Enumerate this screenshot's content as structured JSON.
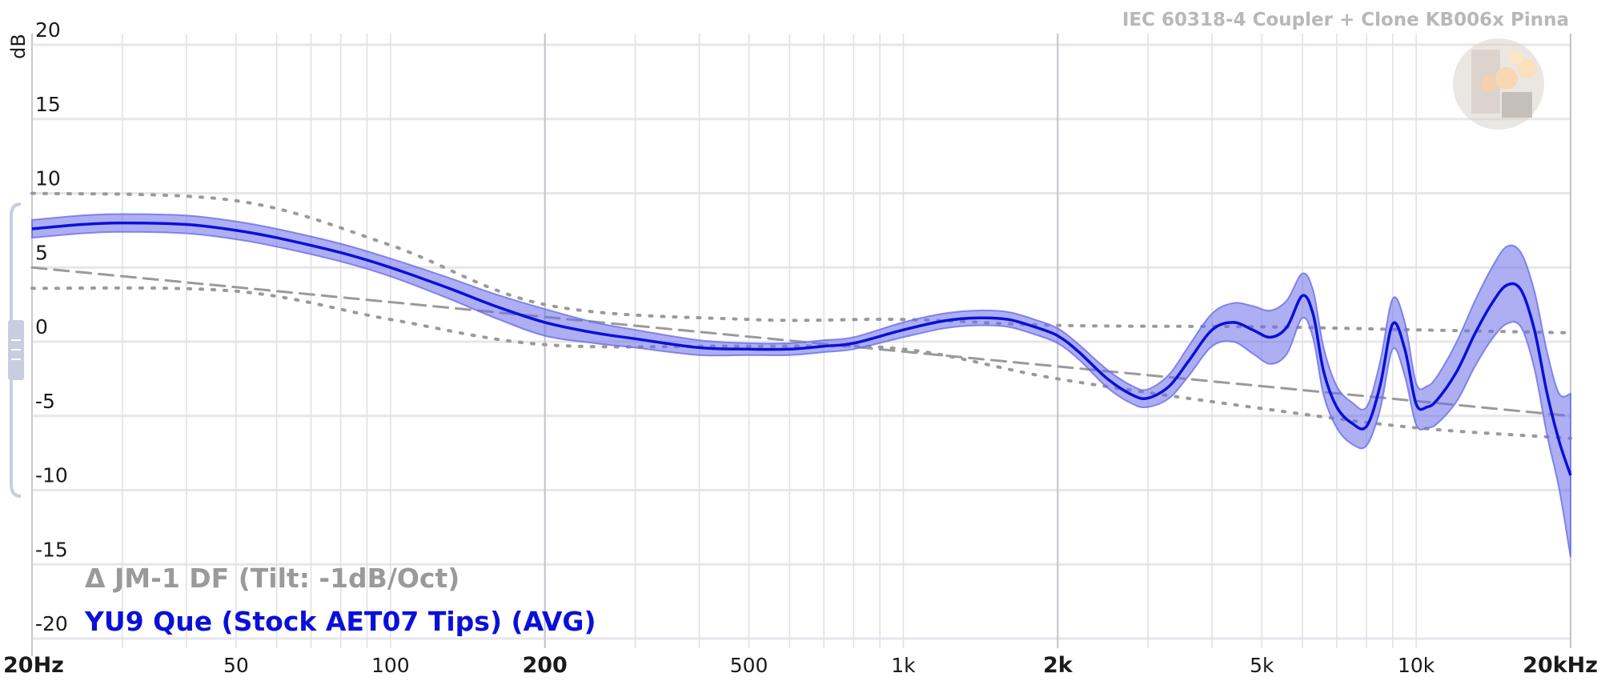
{
  "chart_data": {
    "type": "line",
    "subtitle": "IEC 60318-4 Coupler + Clone KB006x Pinna",
    "ylabel": "dB",
    "xscale": "log",
    "xlim": [
      20,
      20000
    ],
    "ylim": [
      -20,
      20
    ],
    "grid": true,
    "x_ticks": [
      {
        "value": 20,
        "label": "20Hz"
      },
      {
        "value": 50,
        "label": "50"
      },
      {
        "value": 100,
        "label": "100"
      },
      {
        "value": 200,
        "label": "200"
      },
      {
        "value": 500,
        "label": "500"
      },
      {
        "value": 1000,
        "label": "1k"
      },
      {
        "value": 2000,
        "label": "2k"
      },
      {
        "value": 5000,
        "label": "5k"
      },
      {
        "value": 10000,
        "label": "10k"
      },
      {
        "value": 20000,
        "label": "20kHz"
      }
    ],
    "y_ticks": [
      {
        "value": 20,
        "label": "20"
      },
      {
        "value": 15,
        "label": "15"
      },
      {
        "value": 10,
        "label": "10"
      },
      {
        "value": 5,
        "label": "5"
      },
      {
        "value": 0,
        "label": "0"
      },
      {
        "value": -5,
        "label": "-5"
      },
      {
        "value": -10,
        "label": "-10"
      },
      {
        "value": -15,
        "label": "-15"
      },
      {
        "value": -20,
        "label": "-20"
      }
    ],
    "legend_position": "bottom-left",
    "series": [
      {
        "name": "YU9 Que (Stock AET07 Tips) (AVG)",
        "color": "#0a10d8",
        "band_color": "#6a6ee8",
        "x": [
          20,
          25,
          30,
          40,
          50,
          60,
          80,
          100,
          130,
          160,
          200,
          250,
          300,
          400,
          500,
          600,
          700,
          800,
          1000,
          1200,
          1400,
          1600,
          1800,
          2000,
          2200,
          2500,
          2800,
          3000,
          3300,
          3600,
          4000,
          4400,
          4800,
          5200,
          5600,
          6000,
          6300,
          6600,
          7000,
          7500,
          8000,
          8500,
          9000,
          9500,
          10000,
          10500,
          11000,
          12000,
          13000,
          14000,
          15000,
          16000,
          17000,
          18000,
          19000,
          20000
        ],
        "y": [
          7.6,
          7.9,
          8.0,
          7.9,
          7.5,
          7.0,
          6.0,
          5.0,
          3.6,
          2.4,
          1.3,
          0.6,
          0.2,
          -0.4,
          -0.5,
          -0.5,
          -0.3,
          -0.1,
          0.8,
          1.4,
          1.6,
          1.5,
          1.0,
          0.4,
          -0.7,
          -2.5,
          -3.6,
          -3.8,
          -3.0,
          -1.3,
          0.8,
          1.3,
          0.8,
          0.3,
          1.0,
          3.1,
          1.8,
          -2.0,
          -4.4,
          -5.5,
          -5.7,
          -3.0,
          1.2,
          -0.5,
          -4.2,
          -4.4,
          -3.9,
          -2.0,
          0.5,
          2.5,
          3.8,
          3.5,
          0.8,
          -3.5,
          -6.7,
          -9.0
        ],
        "band": [
          0.6,
          0.6,
          0.6,
          0.6,
          0.6,
          0.6,
          0.6,
          0.6,
          0.7,
          0.8,
          0.9,
          0.7,
          0.6,
          0.5,
          0.4,
          0.4,
          0.4,
          0.4,
          0.5,
          0.5,
          0.5,
          0.5,
          0.5,
          0.5,
          0.5,
          0.6,
          0.6,
          0.6,
          0.8,
          1.0,
          1.1,
          1.3,
          1.6,
          1.8,
          1.8,
          1.5,
          1.6,
          1.6,
          1.4,
          1.4,
          1.3,
          1.6,
          1.7,
          1.8,
          1.4,
          1.4,
          1.6,
          2.0,
          2.2,
          2.4,
          2.6,
          2.5,
          2.6,
          2.8,
          3.2,
          5.5
        ]
      },
      {
        "name": "Δ JM-1 DF (Tilt: -1dB/Oct)",
        "color": "#9a9a9a",
        "style": "dashed",
        "x": [
          20,
          20000
        ],
        "y": [
          5.0,
          -5.0
        ]
      },
      {
        "style": "dotted",
        "color": "#9a9a9a",
        "x": [
          20,
          50,
          100,
          200,
          500,
          1000,
          2000,
          5000,
          10000,
          20000
        ],
        "y": [
          10.0,
          9.5,
          6.5,
          2.5,
          1.5,
          1.5,
          1.1,
          1.0,
          0.8,
          0.6
        ]
      },
      {
        "style": "dotted",
        "color": "#9a9a9a",
        "x": [
          20,
          50,
          100,
          200,
          500,
          1000,
          2000,
          5000,
          10000,
          20000
        ],
        "y": [
          3.6,
          3.4,
          1.5,
          -0.2,
          -0.3,
          -0.5,
          -2.5,
          -4.5,
          -5.8,
          -6.5
        ]
      }
    ]
  }
}
